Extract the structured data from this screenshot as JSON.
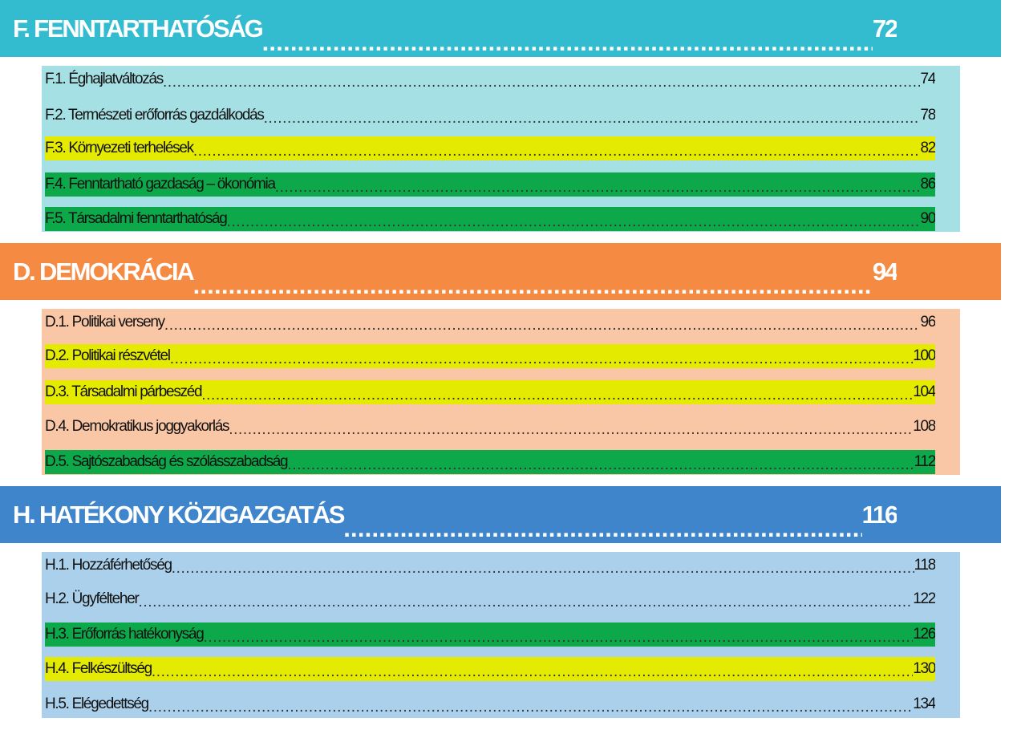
{
  "colors": {
    "fenntarthatosag_header": "#33BBCF",
    "fenntarthatosag_panel": "#A5E0E4",
    "demokracia_header": "#F58A43",
    "demokracia_panel": "#FAC7A6",
    "kozigazgatas_header": "#3F85CC",
    "kozigazgatas_panel": "#AAD0EB",
    "highlight_yellow": "#E5EB00",
    "highlight_green": "#0DA84A"
  },
  "sections": [
    {
      "title": "F. FENNTARTHATÓSÁG",
      "page": "72",
      "items": [
        {
          "label": "F.1. Éghajlatváltozás",
          "page": "74",
          "highlight": "none"
        },
        {
          "label": "F.2. Természeti erőforrás gazdálkodás",
          "page": "78",
          "highlight": "none"
        },
        {
          "label": "F.3. Környezeti terhelések",
          "page": "82",
          "highlight": "yellow"
        },
        {
          "label": "F.4. Fenntartható gazdaság – ökonómia",
          "page": "86",
          "highlight": "green"
        },
        {
          "label": "F.5. Társadalmi fenntarthatóság",
          "page": "90",
          "highlight": "green"
        }
      ]
    },
    {
      "title": "D. DEMOKRÁCIA",
      "page": "94",
      "items": [
        {
          "label": "D.1. Politikai verseny",
          "page": "96",
          "highlight": "none"
        },
        {
          "label": "D.2. Politikai részvétel",
          "page": "100",
          "highlight": "yellow"
        },
        {
          "label": "D.3. Társadalmi párbeszéd",
          "page": "104",
          "highlight": "yellow"
        },
        {
          "label": "D.4. Demokratikus joggyakorlás",
          "page": "108",
          "highlight": "none"
        },
        {
          "label": "D.5. Sajtószabadság és szólásszabadság",
          "page": "112",
          "highlight": "green"
        }
      ]
    },
    {
      "title": "H. HATÉKONY KÖZIGAZGATÁS",
      "page": "116",
      "items": [
        {
          "label": "H.1. Hozzáférhetőség",
          "page": "118",
          "highlight": "none"
        },
        {
          "label": "H.2. Ügyfélteher",
          "page": "122",
          "highlight": "none"
        },
        {
          "label": "H.3. Erőforrás hatékonyság",
          "page": "126",
          "highlight": "green"
        },
        {
          "label": "H.4. Felkészültség",
          "page": "130",
          "highlight": "yellow"
        },
        {
          "label": "H.5. Elégedettség",
          "page": "134",
          "highlight": "none"
        }
      ]
    }
  ]
}
